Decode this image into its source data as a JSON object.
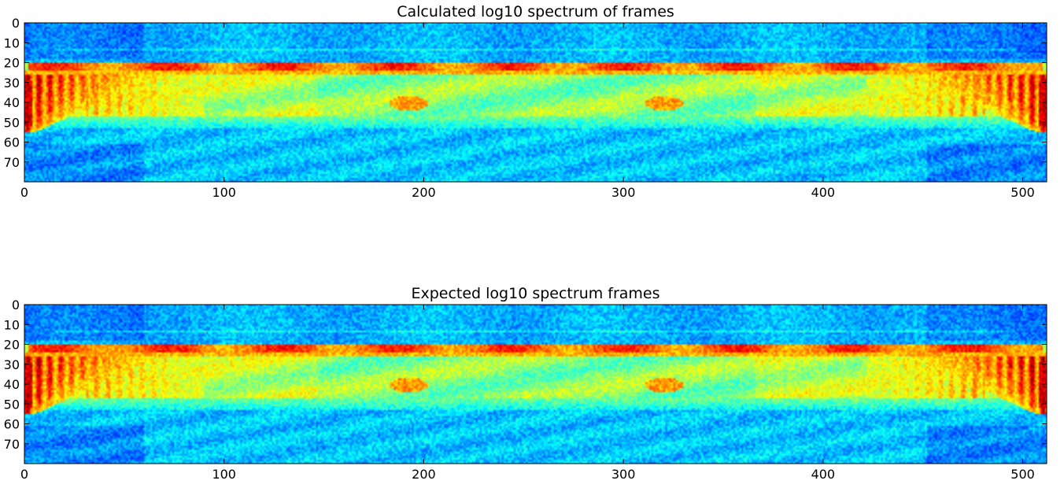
{
  "chart_data": [
    {
      "type": "heatmap",
      "title": "Calculated log10 spectrum of frames",
      "xlabel": "",
      "ylabel": "",
      "xlim": [
        0,
        512
      ],
      "ylim": [
        80,
        0
      ],
      "xticks": [
        0,
        100,
        200,
        300,
        400,
        500
      ],
      "yticks": [
        0,
        10,
        20,
        30,
        40,
        50,
        60,
        70
      ],
      "colormap": "jet",
      "grid": false,
      "legend": "none"
    },
    {
      "type": "heatmap",
      "title": "Expected log10 spectrum frames",
      "xlabel": "",
      "ylabel": "",
      "xlim": [
        0,
        512
      ],
      "ylim": [
        80,
        0
      ],
      "xticks": [
        0,
        100,
        200,
        300,
        400,
        500
      ],
      "yticks": [
        0,
        10,
        20,
        30,
        40,
        50,
        60,
        70
      ],
      "colormap": "jet",
      "grid": false,
      "legend": "none"
    }
  ]
}
